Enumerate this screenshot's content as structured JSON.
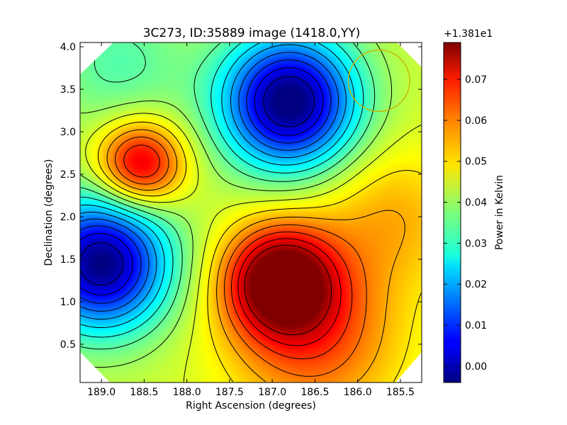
{
  "chart_data": {
    "type": "heatmap",
    "title": "3C273, ID:35889 image (1418.0,YY)",
    "xlabel": "Right Ascension (degrees)",
    "ylabel": "Declination (degrees)",
    "xlim": [
      189.25,
      185.25
    ],
    "ylim": [
      0.05,
      4.05
    ],
    "x_ticks": [
      "189.0",
      "188.5",
      "188.0",
      "187.5",
      "187.0",
      "186.5",
      "186.0",
      "185.5"
    ],
    "y_ticks": [
      "0.5",
      "1.0",
      "1.5",
      "2.0",
      "2.5",
      "3.0",
      "3.5",
      "4.0"
    ],
    "colorbar": {
      "label": "Power in Kelvin",
      "offset_text": "+1.381e1",
      "vmin": -0.004,
      "vmax": 0.079,
      "ticks": [
        "0.00",
        "0.01",
        "0.02",
        "0.03",
        "0.04",
        "0.05",
        "0.06",
        "0.07"
      ],
      "colormap": "jet"
    },
    "contour_levels": 16,
    "field_features": [
      {
        "kind": "maximum",
        "ra": 186.9,
        "dec": 1.25,
        "value": 0.079
      },
      {
        "kind": "maximum",
        "ra": 188.55,
        "dec": 2.62,
        "value": 0.068
      },
      {
        "kind": "minimum",
        "ra": 186.8,
        "dec": 3.35,
        "value": -0.003
      },
      {
        "kind": "minimum",
        "ra": 189.0,
        "dec": 1.45,
        "value": -0.004
      }
    ],
    "beam_marker": {
      "ra": 185.75,
      "dec": 3.6,
      "radius_deg": 0.36,
      "color": "#c8b400"
    },
    "grid": false,
    "legend": "none"
  }
}
